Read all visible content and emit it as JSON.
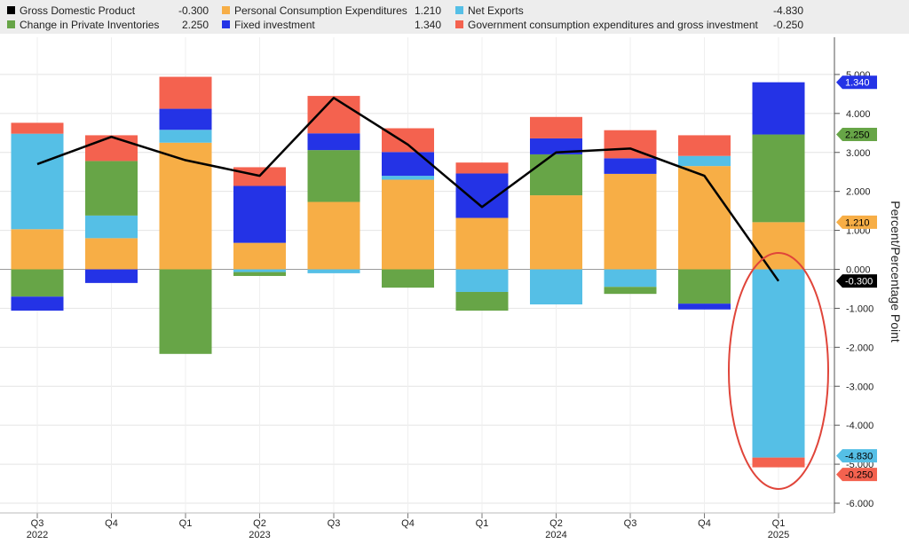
{
  "chart_data": {
    "type": "bar",
    "stacked": true,
    "overlay_line_series": "Gross Domestic Product",
    "categories": [
      "Q3",
      "Q4",
      "Q1",
      "Q2",
      "Q3",
      "Q4",
      "Q1",
      "Q2",
      "Q3",
      "Q4",
      "Q1"
    ],
    "year_labels": [
      {
        "at": 0,
        "label": "2022"
      },
      {
        "at": 3,
        "label": "2023"
      },
      {
        "at": 7,
        "label": "2024"
      },
      {
        "at": 10,
        "label": "2025"
      }
    ],
    "ylabel": "Percent/Percentage Point",
    "ylim": [
      -6,
      5.5
    ],
    "yticks": [
      {
        "v": 5,
        "label": "5.000"
      },
      {
        "v": 4,
        "label": "4.000"
      },
      {
        "v": 3,
        "label": "3.000"
      },
      {
        "v": 2,
        "label": "2.000"
      },
      {
        "v": 1,
        "label": "1.000"
      },
      {
        "v": 0,
        "label": "0.000"
      },
      {
        "v": -1,
        "label": "-1.000"
      },
      {
        "v": -2,
        "label": "-2.000"
      },
      {
        "v": -3,
        "label": "-3.000"
      },
      {
        "v": -4,
        "label": "-4.000"
      },
      {
        "v": -5,
        "label": "-5.000"
      },
      {
        "v": -6,
        "label": "-6.000"
      }
    ],
    "grid": true,
    "legend_position": "top",
    "series": [
      {
        "name": "Gross Domestic Product",
        "type": "line",
        "color": "#000000",
        "legend_value": "-0.300",
        "values": [
          2.7,
          3.4,
          2.8,
          2.4,
          4.4,
          3.2,
          1.6,
          3.0,
          3.1,
          2.4,
          -0.3
        ]
      },
      {
        "name": "Personal Consumption Expenditures",
        "type": "bar",
        "color": "#f7ae46",
        "legend_value": "1.210",
        "values": [
          1.03,
          0.8,
          3.25,
          0.68,
          1.73,
          2.3,
          1.32,
          1.9,
          2.45,
          2.65,
          1.21
        ]
      },
      {
        "name": "Net Exports",
        "type": "bar",
        "color": "#55bfe6",
        "legend_value": "-4.830",
        "values": [
          2.45,
          0.58,
          0.33,
          -0.07,
          -0.1,
          0.1,
          -0.58,
          -0.9,
          -0.45,
          0.26,
          -4.83
        ]
      },
      {
        "name": "Change in Private Inventories",
        "type": "bar",
        "color": "#67a547",
        "legend_value": "2.250",
        "values": [
          -0.7,
          1.4,
          -2.17,
          -0.1,
          1.33,
          -0.47,
          -0.48,
          1.05,
          -0.18,
          -0.88,
          2.25
        ]
      },
      {
        "name": "Fixed investment",
        "type": "bar",
        "color": "#2433e6",
        "legend_value": "1.340",
        "values": [
          -0.36,
          -0.35,
          0.54,
          1.46,
          0.43,
          0.61,
          1.14,
          0.41,
          0.4,
          -0.15,
          1.34
        ]
      },
      {
        "name": "Government consumption expenditures and gross investment",
        "type": "bar",
        "color": "#f4624f",
        "legend_value": "-0.250",
        "values": [
          0.28,
          0.66,
          0.82,
          0.48,
          0.96,
          0.61,
          0.28,
          0.55,
          0.72,
          0.53,
          -0.25
        ]
      }
    ],
    "axis_tags": [
      {
        "series": 4,
        "label": "1.340"
      },
      {
        "series": 3,
        "label": "2.250"
      },
      {
        "series": 1,
        "label": "1.210"
      },
      {
        "series": 0,
        "label": "-0.300"
      },
      {
        "series": 2,
        "label": "-4.830"
      },
      {
        "series": 5,
        "label": "-0.250"
      }
    ],
    "annotation": {
      "type": "ellipse",
      "color": "#e0453a",
      "target_category": 10
    }
  }
}
